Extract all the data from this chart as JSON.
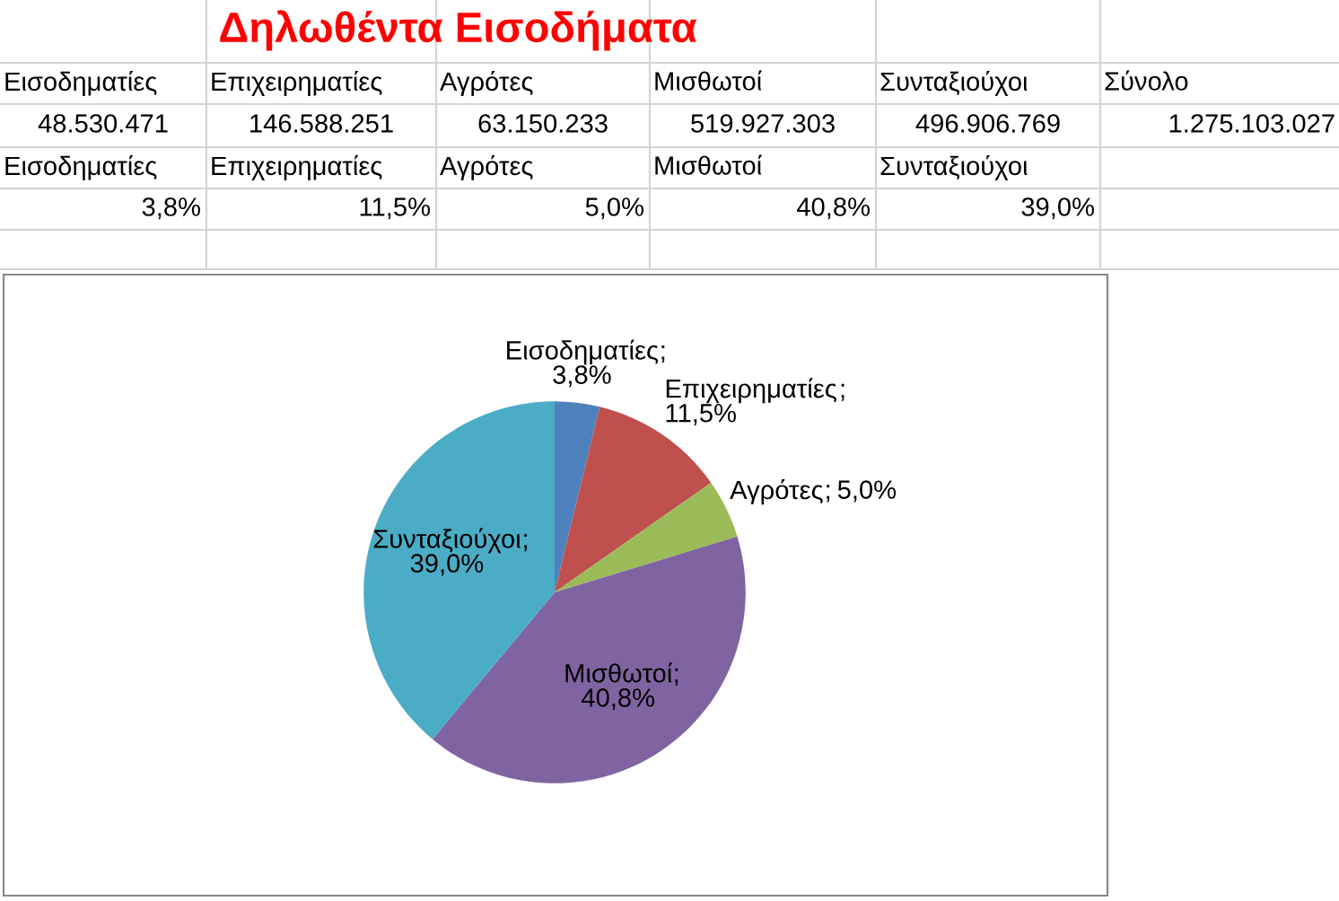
{
  "chart_data": [
    {
      "type": "other",
      "title": "Δηλωθέντα Εισοδήματα",
      "color": "#ff0000",
      "annotations": [
        "Εισοδηματίες",
        "Επιχειρηματίες",
        "Αγρότες",
        "Μισθωτοί",
        "Συνταξιούχοι",
        "Σύνολο",
        "48.530.471",
        "146.588.251",
        "63.150.233",
        "519.927.303",
        "496.906.769",
        "1.275.103.027",
        "Εισοδηματίες",
        "Επιχειρηματίες",
        "Αγρότες",
        "Μισθωτοί",
        "Συνταξιούχοι",
        "3,8%",
        "11,5%",
        "5,0%",
        "40,8%",
        "39,0%"
      ]
    },
    {
      "type": "pie",
      "categories": [
        "Εισοδηματίες",
        "Επιχειρηματίες",
        "Αγρότες",
        "Μισθωτοί",
        "Συνταξιούχοι"
      ],
      "values": [
        3.8,
        11.5,
        5.0,
        40.8,
        39.0
      ],
      "colors": [
        "#4f81bd",
        "#c0504d",
        "#9bbb59",
        "#8064a2",
        "#4bacc6"
      ],
      "value_labels": [
        "3,8%",
        "11,5%",
        "5,0%",
        "40,8%",
        "39,0%"
      ],
      "annotations": [
        ";"
      ],
      "legend": false
    }
  ]
}
